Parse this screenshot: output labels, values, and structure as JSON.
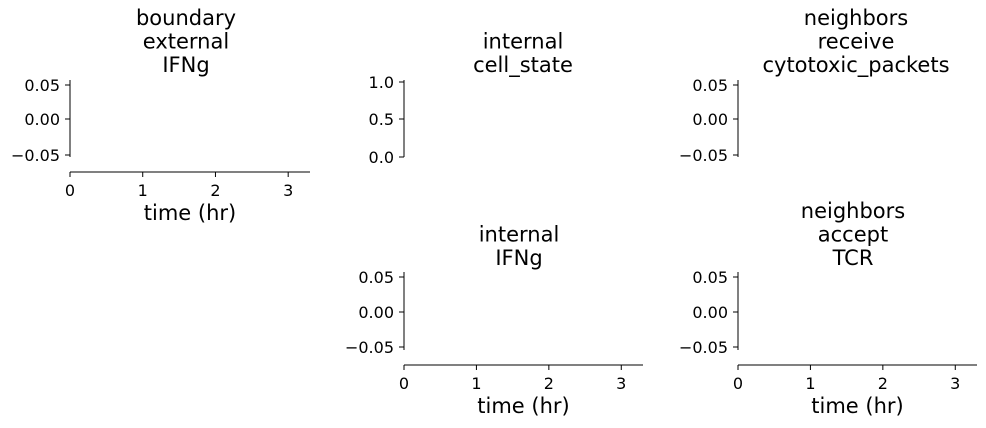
{
  "chart_data": [
    {
      "type": "line",
      "title_lines": [
        "boundary",
        "external",
        "IFNg"
      ],
      "xlabel": "time (hr)",
      "ylabel": "",
      "x_ticks": [
        "0",
        "1",
        "2",
        "3"
      ],
      "y_ticks": [
        "0.05",
        "0.00",
        "−0.05"
      ],
      "ylim": [
        -0.055,
        0.055
      ],
      "xlim": [
        0,
        3.3
      ],
      "series": [],
      "grid": false
    },
    {
      "type": "line",
      "title_lines": [
        "internal",
        "cell_state"
      ],
      "xlabel": "",
      "ylabel": "",
      "x_ticks": [],
      "y_ticks": [
        "1.0",
        "0.5",
        "0.0"
      ],
      "ylim": [
        0,
        1
      ],
      "series": [],
      "grid": false
    },
    {
      "type": "line",
      "title_lines": [
        "neighbors",
        "receive",
        "cytotoxic_packets"
      ],
      "xlabel": "",
      "ylabel": "",
      "x_ticks": [],
      "y_ticks": [
        "0.05",
        "0.00",
        "−0.05"
      ],
      "ylim": [
        -0.055,
        0.055
      ],
      "series": [],
      "grid": false
    },
    {
      "type": "line",
      "title_lines": [
        "internal",
        "IFNg"
      ],
      "xlabel": "time (hr)",
      "ylabel": "",
      "x_ticks": [
        "0",
        "1",
        "2",
        "3"
      ],
      "y_ticks": [
        "0.05",
        "0.00",
        "−0.05"
      ],
      "ylim": [
        -0.055,
        0.055
      ],
      "xlim": [
        0,
        3.3
      ],
      "series": [],
      "grid": false
    },
    {
      "type": "line",
      "title_lines": [
        "neighbors",
        "accept",
        "TCR"
      ],
      "xlabel": "time (hr)",
      "ylabel": "",
      "x_ticks": [
        "0",
        "1",
        "2",
        "3"
      ],
      "y_ticks": [
        "0.05",
        "0.00",
        "−0.05"
      ],
      "ylim": [
        -0.055,
        0.055
      ],
      "xlim": [
        0,
        3.3
      ],
      "series": [],
      "grid": false
    }
  ]
}
